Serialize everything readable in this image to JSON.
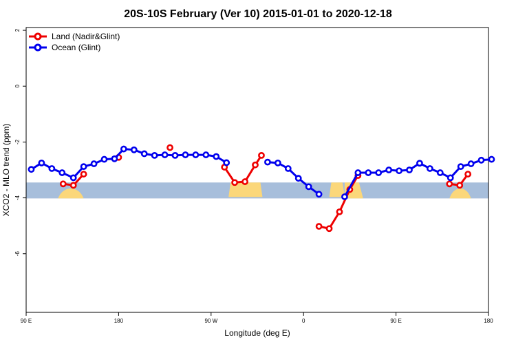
{
  "chart_data": {
    "type": "line",
    "title": "20S-10S February (Ver 10)   2015-01-01 to 2020-12-18",
    "xlabel": "Longitude (deg E)",
    "ylabel": "XCO2 - MLO trend (ppm)",
    "xlim": [
      90,
      540
    ],
    "ylim": [
      -8.1,
      2.1
    ],
    "xticks": [
      {
        "value": 90,
        "label": "90 E"
      },
      {
        "value": 180,
        "label": "180"
      },
      {
        "value": 270,
        "label": "90 W"
      },
      {
        "value": 360,
        "label": "0"
      },
      {
        "value": 450,
        "label": "90 E"
      },
      {
        "value": 540,
        "label": "180"
      }
    ],
    "yticks": [
      {
        "value": 2,
        "label": "2"
      },
      {
        "value": 0,
        "label": "0"
      },
      {
        "value": -2,
        "label": "-2"
      },
      {
        "value": -4,
        "label": "-4"
      },
      {
        "value": -6,
        "label": "-6"
      }
    ],
    "grid": false,
    "legend_position": "top-left",
    "series": [
      {
        "name": "Land (Nadir&Glint)",
        "color": "#ee0000",
        "points": [
          [
            126,
            -3.5
          ],
          [
            136,
            -3.55
          ],
          [
            146,
            -3.15
          ],
          [
            null,
            null
          ],
          [
            180,
            -2.55
          ],
          [
            null,
            null
          ],
          [
            230,
            -2.2
          ],
          [
            null,
            null
          ],
          [
            283,
            -2.9
          ],
          [
            293,
            -3.45
          ],
          [
            303,
            -3.42
          ],
          [
            313,
            -2.82
          ],
          [
            319,
            -2.48
          ],
          [
            null,
            null
          ],
          [
            375,
            -5.02
          ],
          [
            385,
            -5.1
          ],
          [
            395,
            -4.5
          ],
          [
            405,
            -3.7
          ],
          [
            413,
            -3.2
          ],
          [
            null,
            null
          ],
          [
            502,
            -3.5
          ],
          [
            512,
            -3.55
          ],
          [
            520,
            -3.15
          ]
        ]
      },
      {
        "name": "Ocean (Glint)",
        "color": "#0000ee",
        "points": [
          [
            95,
            -2.98
          ],
          [
            105,
            -2.75
          ],
          [
            115,
            -2.95
          ],
          [
            125,
            -3.1
          ],
          [
            136,
            -3.28
          ],
          [
            146,
            -2.88
          ],
          [
            156,
            -2.78
          ],
          [
            166,
            -2.62
          ],
          [
            176,
            -2.6
          ],
          [
            185,
            -2.25
          ],
          [
            195,
            -2.28
          ],
          [
            205,
            -2.42
          ],
          [
            215,
            -2.48
          ],
          [
            225,
            -2.46
          ],
          [
            235,
            -2.48
          ],
          [
            245,
            -2.46
          ],
          [
            255,
            -2.46
          ],
          [
            265,
            -2.46
          ],
          [
            275,
            -2.52
          ],
          [
            285,
            -2.74
          ],
          [
            null,
            null
          ],
          [
            325,
            -2.72
          ],
          [
            335,
            -2.75
          ],
          [
            345,
            -2.95
          ],
          [
            355,
            -3.3
          ],
          [
            365,
            -3.6
          ],
          [
            375,
            -3.87
          ],
          [
            null,
            null
          ],
          [
            400,
            -3.96
          ],
          [
            413,
            -3.1
          ],
          [
            423,
            -3.1
          ],
          [
            433,
            -3.1
          ],
          [
            443,
            -3.0
          ],
          [
            453,
            -3.03
          ],
          [
            463,
            -3.0
          ],
          [
            473,
            -2.76
          ],
          [
            483,
            -2.95
          ],
          [
            493,
            -3.1
          ],
          [
            503,
            -3.28
          ],
          [
            513,
            -2.88
          ],
          [
            523,
            -2.78
          ],
          [
            533,
            -2.65
          ],
          [
            543,
            -2.62
          ]
        ]
      }
    ]
  },
  "map_band": {
    "ocean_color": "#a7bedb",
    "land_color": "#fbd77a",
    "y_range": [
      -3.45,
      -4.02
    ],
    "land_segments": [
      {
        "lon": [
          121,
          146
        ],
        "shape": "bump"
      },
      {
        "lon": [
          287,
          320
        ],
        "shape": "mass"
      },
      {
        "lon": [
          385,
          400
        ],
        "shape": "mass"
      },
      {
        "lon": [
          400,
          418
        ],
        "shape": "taper"
      },
      {
        "lon": [
          502,
          523
        ],
        "shape": "bump"
      }
    ]
  }
}
